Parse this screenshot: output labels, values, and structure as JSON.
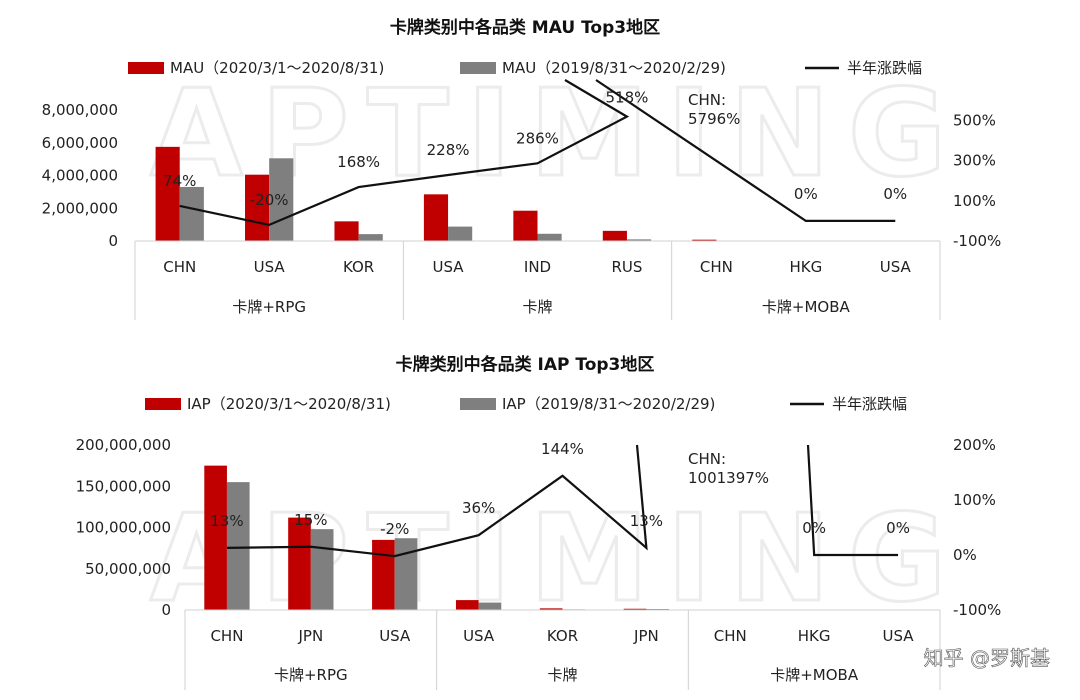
{
  "watermark": "APTIMING",
  "credit": "知乎 @罗斯基",
  "chart_data": [
    {
      "type": "bar",
      "title": "卡牌类别中各品类 MAU Top3地区",
      "legend": [
        "MAU（2020/3/1～2020/8/31)",
        "MAU（2019/8/31～2020/2/29)",
        "半年涨跌幅"
      ],
      "groups": [
        "卡牌+RPG",
        "卡牌",
        "卡牌+MOBA"
      ],
      "categories": [
        "CHN",
        "USA",
        "KOR",
        "USA",
        "IND",
        "RUS",
        "CHN",
        "HKG",
        "USA"
      ],
      "series": [
        {
          "name": "MAU（2020/3/1～2020/8/31)",
          "color": "#c00000",
          "values": [
            5750000,
            4050000,
            1200000,
            2850000,
            1850000,
            620000,
            80000,
            0,
            0
          ]
        },
        {
          "name": "MAU（2019/8/31～2020/2/29)",
          "color": "#7f7f7f",
          "values": [
            3300000,
            5050000,
            420000,
            880000,
            440000,
            100000,
            0,
            0,
            0
          ]
        }
      ],
      "change": {
        "name": "半年涨跌幅",
        "values": [
          74,
          -20,
          168,
          228,
          286,
          518,
          5796,
          0,
          0
        ],
        "labels": [
          "74%",
          "-20%",
          "168%",
          "228%",
          "286%",
          "518%",
          "",
          "0%",
          "0%"
        ]
      },
      "annotation": {
        "line1": "CHN:",
        "line2": "5796%"
      },
      "ylim": [
        0,
        8000000
      ],
      "yticks": [
        0,
        2000000,
        4000000,
        6000000,
        8000000
      ],
      "ytick_labels": [
        "0",
        "2,000,000",
        "4,000,000",
        "6,000,000",
        "8,000,000"
      ],
      "y2lim": [
        -100,
        700
      ],
      "y2ticks": [
        -100,
        100,
        300,
        500
      ],
      "y2tick_labels": [
        "-100%",
        "100%",
        "300%",
        "500%"
      ]
    },
    {
      "type": "bar",
      "title": "卡牌类别中各品类 IAP Top3地区",
      "legend": [
        "IAP（2020/3/1～2020/8/31)",
        "IAP（2019/8/31～2020/2/29)",
        "半年涨跌幅"
      ],
      "groups": [
        "卡牌+RPG",
        "卡牌",
        "卡牌+MOBA"
      ],
      "categories": [
        "CHN",
        "JPN",
        "USA",
        "USA",
        "KOR",
        "JPN",
        "CHN",
        "HKG",
        "USA"
      ],
      "series": [
        {
          "name": "IAP（2020/3/1～2020/8/31)",
          "color": "#c00000",
          "values": [
            175000000,
            112000000,
            85000000,
            12000000,
            2000000,
            1500000,
            0,
            0,
            0
          ]
        },
        {
          "name": "IAP（2019/8/31～2020/2/29)",
          "color": "#7f7f7f",
          "values": [
            155000000,
            98000000,
            87000000,
            9000000,
            800000,
            1200000,
            0,
            0,
            0
          ]
        }
      ],
      "change": {
        "name": "半年涨跌幅",
        "values": [
          13,
          15,
          -2,
          36,
          144,
          13,
          1001397,
          0,
          0
        ],
        "labels": [
          "13%",
          "15%",
          "-2%",
          "36%",
          "144%",
          "13%",
          "",
          "0%",
          "0%"
        ]
      },
      "annotation": {
        "line1": "CHN:",
        "line2": "1001397%"
      },
      "ylim": [
        0,
        200000000
      ],
      "yticks": [
        0,
        50000000,
        100000000,
        150000000,
        200000000
      ],
      "ytick_labels": [
        "0",
        "50,000,000",
        "100,000,000",
        "150,000,000",
        "200,000,000"
      ],
      "y2lim": [
        -100,
        200
      ],
      "y2ticks": [
        -100,
        0,
        100,
        200
      ],
      "y2tick_labels": [
        "-100%",
        "0%",
        "100%",
        "200%"
      ]
    }
  ]
}
